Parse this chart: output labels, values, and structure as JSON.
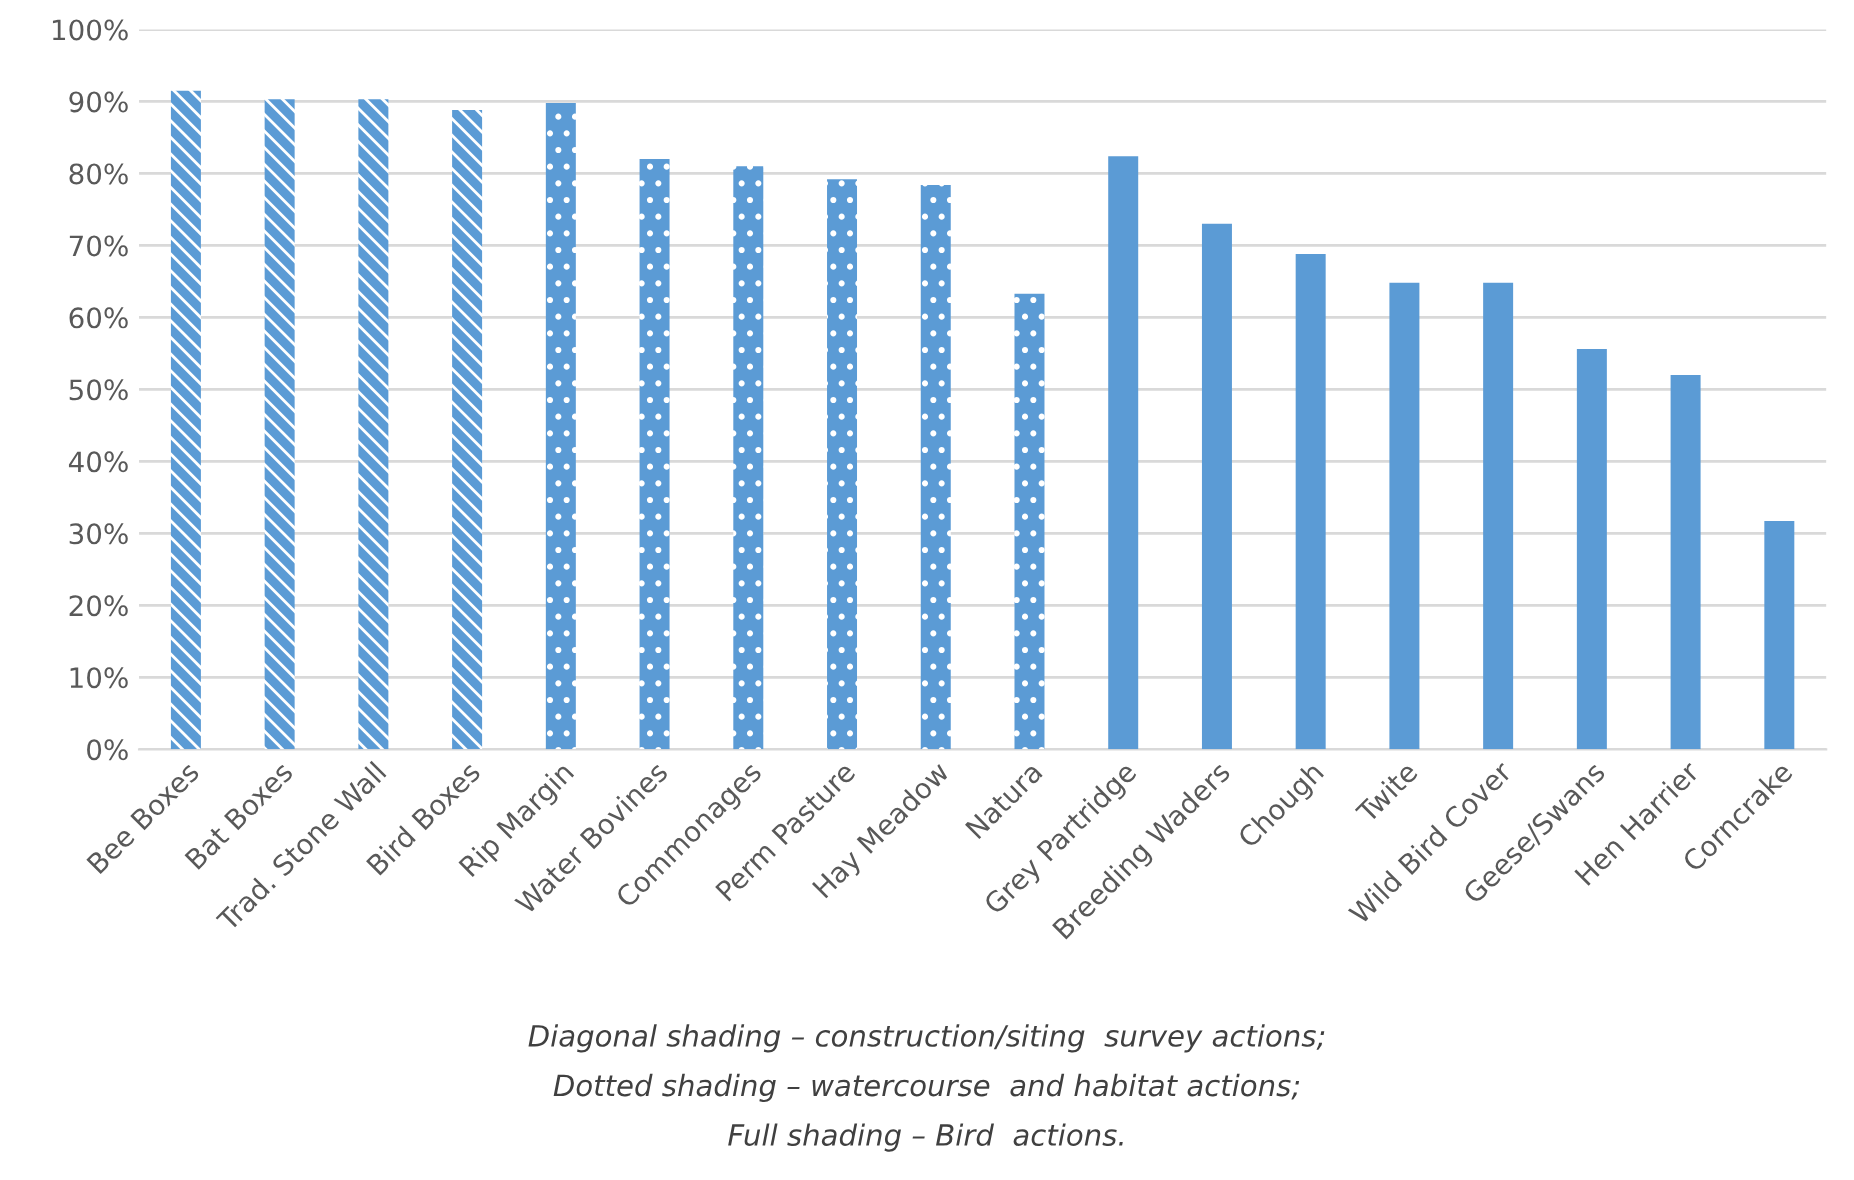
{
  "chart_data": {
    "type": "bar",
    "categories": [
      "Bee Boxes",
      "Bat Boxes",
      "Trad. Stone Wall",
      "Bird Boxes",
      "Rip Margin",
      "Water Bovines",
      "Commonages",
      "Perm Pasture",
      "Hay Meadow",
      "Natura",
      "Grey Partridge",
      "Breeding Waders",
      "Chough",
      "Twite",
      "Wild Bird Cover",
      "Geese/Swans",
      "Hen Harrier",
      "Corncrake"
    ],
    "series": [
      {
        "color": "#5b9bd5",
        "values": [
          91.5,
          90.3,
          90.3,
          88.8,
          null,
          null,
          null,
          null,
          null,
          null,
          null,
          null,
          null,
          null,
          null,
          null,
          null,
          null
        ]
      },
      {
        "color": "#5b9bd5",
        "values": [
          null,
          null,
          null,
          null,
          89.8,
          82,
          81,
          79.2,
          78.4,
          63.3,
          null,
          null,
          null,
          null,
          null,
          null,
          null,
          null
        ]
      },
      {
        "color": "#5b9bd5",
        "values": [
          null,
          null,
          null,
          null,
          null,
          null,
          null,
          null,
          null,
          null,
          82.4,
          73,
          68.8,
          64.8,
          64.8,
          55.6,
          52,
          31.7
        ]
      }
    ],
    "ylim": [
      0,
      100
    ],
    "yticks": [
      {
        "value": 0,
        "label": "0%"
      },
      {
        "value": 10,
        "label": "10%"
      },
      {
        "value": 20,
        "label": "20%"
      },
      {
        "value": 30,
        "label": "30%"
      },
      {
        "value": 40,
        "label": "40%"
      },
      {
        "value": 50,
        "label": "50%"
      },
      {
        "value": 60,
        "label": "60%"
      },
      {
        "value": 70,
        "label": "70%"
      },
      {
        "value": 80,
        "label": "80%"
      },
      {
        "value": 90,
        "label": "90%"
      },
      {
        "value": 100,
        "label": "100%"
      }
    ],
    "grid": "y",
    "annotations": [
      "Diagonal shading – construction/siting  survey actions;",
      "Dotted shading – watercourse  and habitat actions;",
      "Full shading – Bird  actions."
    ]
  }
}
